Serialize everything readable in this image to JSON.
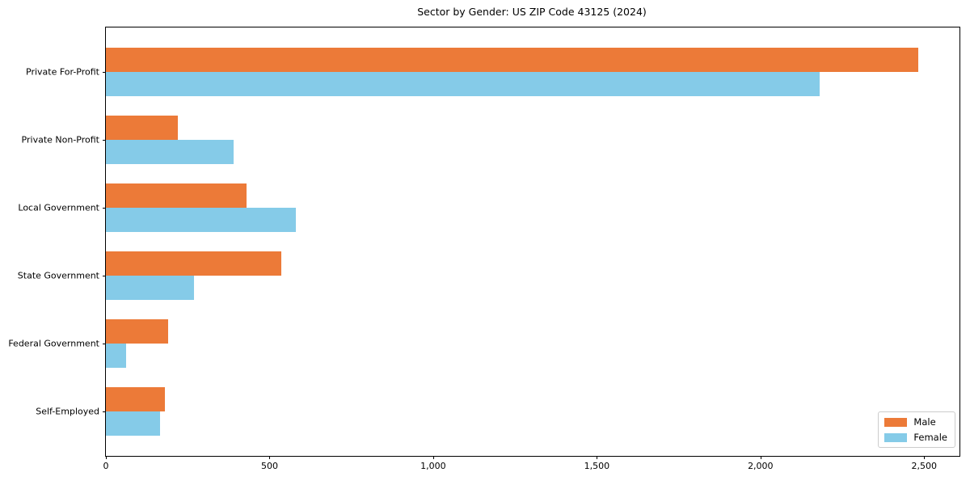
{
  "title": "Sector by Gender: US ZIP Code 43125 (2024)",
  "chart_data": {
    "type": "bar",
    "orientation": "horizontal",
    "title": "Sector by Gender: US ZIP Code 43125 (2024)",
    "xlabel": "",
    "ylabel": "",
    "categories": [
      "Private For-Profit",
      "Private Non-Profit",
      "Local Government",
      "State Government",
      "Federal Government",
      "Self-Employed"
    ],
    "series": [
      {
        "name": "Male",
        "color": "#EC7A38",
        "values": [
          2483,
          220,
          429,
          536,
          191,
          180
        ]
      },
      {
        "name": "Female",
        "color": "#85CBE8",
        "values": [
          2181,
          390,
          580,
          268,
          61,
          165
        ]
      }
    ],
    "xlim": [
      0,
      2608
    ],
    "x_ticks": [
      {
        "value": 0,
        "label": "0"
      },
      {
        "value": 500,
        "label": "500"
      },
      {
        "value": 1000,
        "label": "1,000"
      },
      {
        "value": 1500,
        "label": "1,500"
      },
      {
        "value": 2000,
        "label": "2,000"
      },
      {
        "value": 2500,
        "label": "2,500"
      }
    ],
    "grid": false,
    "legend": {
      "position": "lower right",
      "entries": [
        "Male",
        "Female"
      ]
    }
  }
}
